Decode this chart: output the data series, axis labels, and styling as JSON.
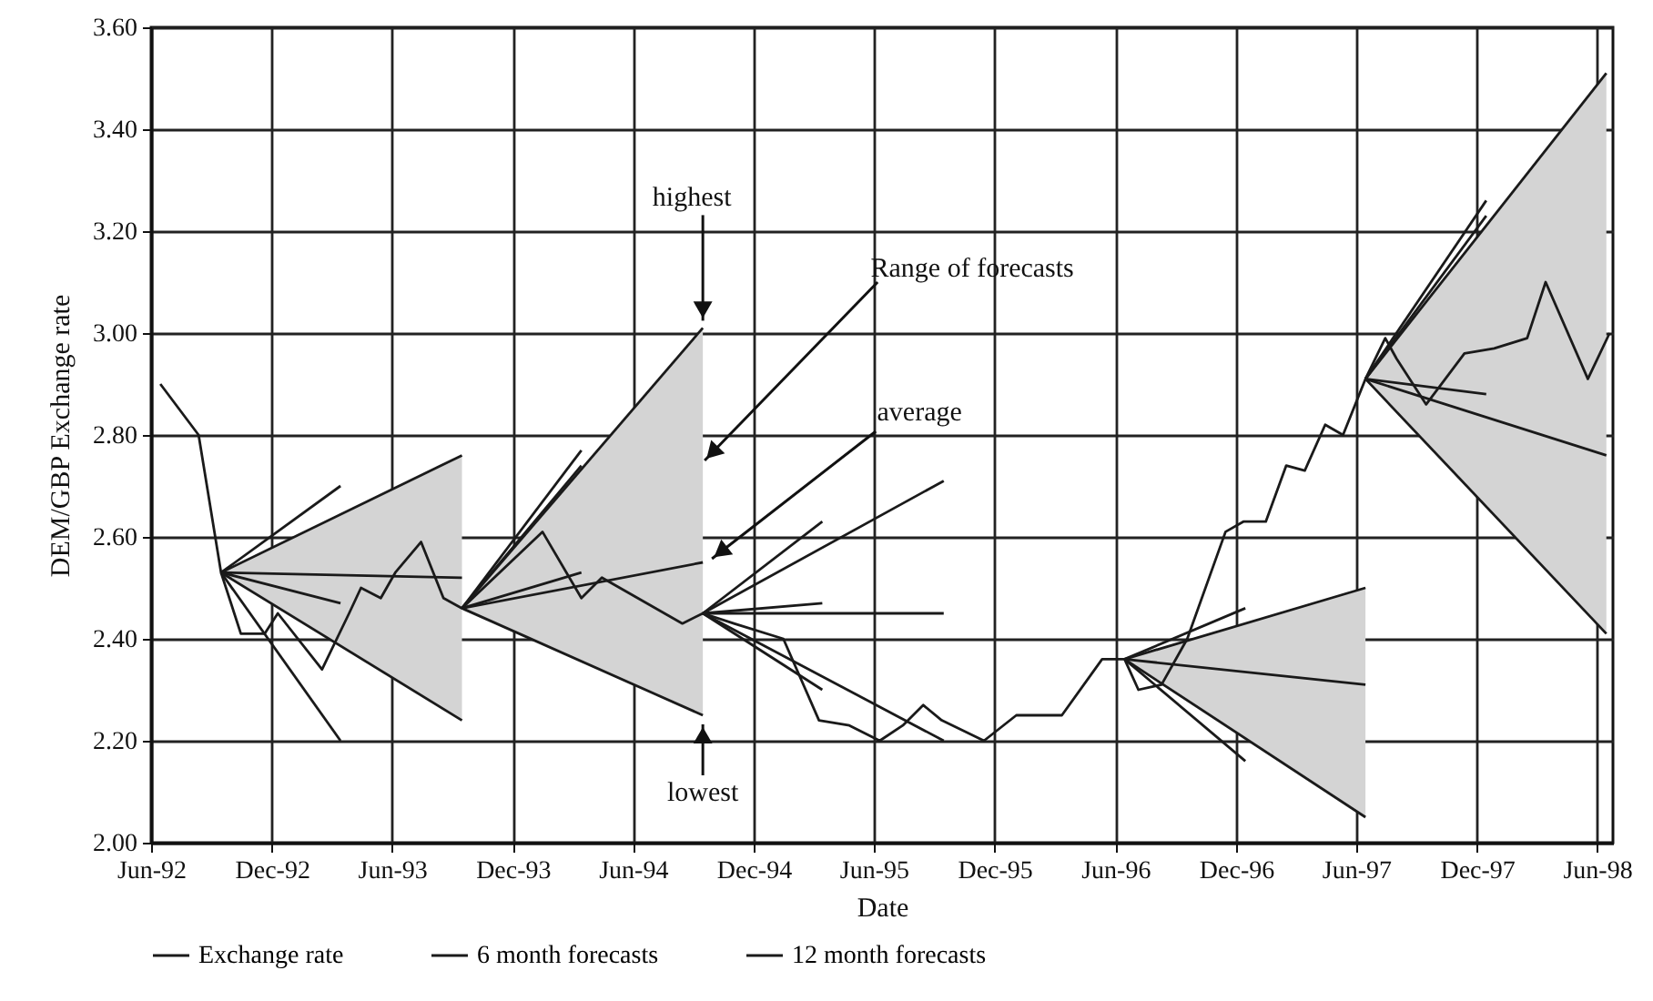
{
  "chart_data": {
    "type": "line",
    "xlabel": "Date",
    "ylabel": "DEM/GBP Exchange rate",
    "xlim": [
      "1992-06-01",
      "1998-06-25"
    ],
    "ylim": [
      2.0,
      3.6
    ],
    "xticks": [
      {
        "value": "1992-06-01",
        "label": "Jun-92"
      },
      {
        "value": "1992-12-01",
        "label": "Dec-92"
      },
      {
        "value": "1993-06-01",
        "label": "Jun-93"
      },
      {
        "value": "1993-12-01",
        "label": "Dec-93"
      },
      {
        "value": "1994-06-01",
        "label": "Jun-94"
      },
      {
        "value": "1994-12-01",
        "label": "Dec-94"
      },
      {
        "value": "1995-06-01",
        "label": "Jun-95"
      },
      {
        "value": "1995-12-01",
        "label": "Dec-95"
      },
      {
        "value": "1996-06-01",
        "label": "Jun-96"
      },
      {
        "value": "1996-12-01",
        "label": "Dec-96"
      },
      {
        "value": "1997-06-01",
        "label": "Jun-97"
      },
      {
        "value": "1997-12-01",
        "label": "Dec-97"
      },
      {
        "value": "1998-06-01",
        "label": "Jun-98"
      }
    ],
    "yticks": [
      {
        "value": 2.0,
        "label": "2.00"
      },
      {
        "value": 2.2,
        "label": "2.20"
      },
      {
        "value": 2.4,
        "label": "2.40"
      },
      {
        "value": 2.6,
        "label": "2.60"
      },
      {
        "value": 2.8,
        "label": "2.80"
      },
      {
        "value": 3.0,
        "label": "3.00"
      },
      {
        "value": 3.2,
        "label": "3.20"
      },
      {
        "value": 3.4,
        "label": "3.40"
      },
      {
        "value": 3.6,
        "label": "3.60"
      }
    ],
    "grid": true,
    "legend": "bottom",
    "marker": "none",
    "line_style": "solid",
    "series": [
      {
        "name": "Exchange rate",
        "color": "#1a1a1a",
        "x": [
          "1992-06-15",
          "1992-08-12",
          "1992-09-15",
          "1992-10-15",
          "1992-11-20",
          "1992-12-10",
          "1993-02-15",
          "1993-03-28",
          "1993-04-15",
          "1993-05-15",
          "1993-06-06",
          "1993-07-15",
          "1993-08-18",
          "1993-09-15",
          "1994-01-15",
          "1994-03-15",
          "1994-04-15",
          "1994-08-15",
          "1994-09-15",
          "1994-11-01",
          "1995-01-15",
          "1995-03-10",
          "1995-04-25",
          "1995-06-10",
          "1995-07-15",
          "1995-08-15",
          "1995-09-12",
          "1995-11-15",
          "1996-01-03",
          "1996-03-12",
          "1996-05-12",
          "1996-06-15",
          "1996-07-06",
          "1996-08-10",
          "1996-09-18",
          "1996-11-15",
          "1996-12-12",
          "1997-01-15",
          "1997-02-15",
          "1997-03-15",
          "1997-04-15",
          "1997-05-12",
          "1997-06-15",
          "1997-07-15",
          "1997-08-01",
          "1997-09-15",
          "1997-11-12",
          "1997-12-27",
          "1998-02-15",
          "1998-03-15",
          "1998-05-18",
          "1998-06-20"
        ],
        "values": [
          2.9,
          2.8,
          2.53,
          2.41,
          2.41,
          2.45,
          2.34,
          2.45,
          2.5,
          2.48,
          2.53,
          2.59,
          2.48,
          2.46,
          2.61,
          2.48,
          2.52,
          2.43,
          2.45,
          2.43,
          2.4,
          2.24,
          2.23,
          2.2,
          2.23,
          2.27,
          2.24,
          2.2,
          2.25,
          2.25,
          2.36,
          2.36,
          2.3,
          2.31,
          2.4,
          2.61,
          2.63,
          2.63,
          2.74,
          2.73,
          2.82,
          2.8,
          2.91,
          2.99,
          2.95,
          2.86,
          2.96,
          2.97,
          2.99,
          3.1,
          2.91,
          3.0
        ]
      },
      {
        "name": "6 month forecasts",
        "color": "#1a1a1a",
        "x": [
          "1992-09-15",
          "1993-03-15"
        ],
        "values": [
          2.53,
          2.7
        ]
      },
      {
        "color": "#1a1a1a",
        "x": [
          "1992-09-15",
          "1993-03-15"
        ],
        "values": [
          2.53,
          2.47
        ]
      },
      {
        "color": "#1a1a1a",
        "x": [
          "1992-09-15",
          "1993-03-15"
        ],
        "values": [
          2.53,
          2.2
        ]
      },
      {
        "name": "12 month forecasts",
        "color": "#1a1a1a",
        "x": [
          "1992-09-15",
          "1993-09-15"
        ],
        "values": [
          2.53,
          2.76
        ]
      },
      {
        "color": "#1a1a1a",
        "x": [
          "1992-09-15",
          "1993-09-15"
        ],
        "values": [
          2.53,
          2.52
        ],
        "lower": [
          2.53,
          2.24
        ],
        "upper": [
          2.53,
          2.76
        ]
      },
      {
        "color": "#1a1a1a",
        "x": [
          "1992-09-15",
          "1993-09-15"
        ],
        "values": [
          2.53,
          2.24
        ]
      },
      {
        "color": "#1a1a1a",
        "x": [
          "1993-09-15",
          "1994-03-15"
        ],
        "values": [
          2.46,
          2.77
        ]
      },
      {
        "color": "#1a1a1a",
        "x": [
          "1993-09-15",
          "1994-03-15"
        ],
        "values": [
          2.46,
          2.74
        ]
      },
      {
        "color": "#1a1a1a",
        "x": [
          "1993-09-15",
          "1994-03-15"
        ],
        "values": [
          2.46,
          2.53
        ]
      },
      {
        "color": "#1a1a1a",
        "x": [
          "1993-09-15",
          "1994-09-15"
        ],
        "values": [
          2.46,
          3.01
        ]
      },
      {
        "color": "#1a1a1a",
        "x": [
          "1993-09-15",
          "1994-09-15"
        ],
        "values": [
          2.46,
          2.55
        ],
        "lower": [
          2.46,
          2.25
        ],
        "upper": [
          2.46,
          3.01
        ]
      },
      {
        "color": "#1a1a1a",
        "x": [
          "1993-09-15",
          "1994-09-15"
        ],
        "values": [
          2.46,
          2.25
        ]
      },
      {
        "color": "#1a1a1a",
        "x": [
          "1994-09-15",
          "1995-03-15"
        ],
        "values": [
          2.45,
          2.63
        ]
      },
      {
        "color": "#1a1a1a",
        "x": [
          "1994-09-15",
          "1995-03-15"
        ],
        "values": [
          2.45,
          2.47
        ]
      },
      {
        "color": "#1a1a1a",
        "x": [
          "1994-09-15",
          "1995-03-15"
        ],
        "values": [
          2.45,
          2.3
        ]
      },
      {
        "color": "#1a1a1a",
        "x": [
          "1994-09-15",
          "1995-09-15"
        ],
        "values": [
          2.45,
          2.71
        ]
      },
      {
        "color": "#1a1a1a",
        "x": [
          "1994-09-15",
          "1995-09-15"
        ],
        "values": [
          2.45,
          2.45
        ]
      },
      {
        "color": "#1a1a1a",
        "x": [
          "1994-09-15",
          "1995-09-15"
        ],
        "values": [
          2.45,
          2.2
        ]
      },
      {
        "color": "#1a1a1a",
        "x": [
          "1996-06-15",
          "1996-12-15"
        ],
        "values": [
          2.36,
          2.46
        ]
      },
      {
        "color": "#1a1a1a",
        "x": [
          "1996-06-15",
          "1996-12-15"
        ],
        "values": [
          2.36,
          2.16
        ]
      },
      {
        "color": "#1a1a1a",
        "x": [
          "1996-06-15",
          "1997-06-15"
        ],
        "values": [
          2.36,
          2.5
        ]
      },
      {
        "color": "#1a1a1a",
        "x": [
          "1996-06-15",
          "1997-06-15"
        ],
        "values": [
          2.36,
          2.31
        ],
        "lower": [
          2.36,
          2.05
        ],
        "upper": [
          2.36,
          2.5
        ]
      },
      {
        "color": "#1a1a1a",
        "x": [
          "1996-06-15",
          "1997-06-15"
        ],
        "values": [
          2.36,
          2.05
        ]
      },
      {
        "color": "#1a1a1a",
        "x": [
          "1997-06-15",
          "1997-12-15"
        ],
        "values": [
          2.91,
          3.26
        ]
      },
      {
        "color": "#1a1a1a",
        "x": [
          "1997-06-15",
          "1997-12-15"
        ],
        "values": [
          2.91,
          3.23
        ]
      },
      {
        "color": "#1a1a1a",
        "x": [
          "1997-06-15",
          "1997-12-15"
        ],
        "values": [
          2.91,
          2.88
        ]
      },
      {
        "color": "#1a1a1a",
        "x": [
          "1997-06-15",
          "1998-06-15"
        ],
        "values": [
          2.91,
          3.51
        ]
      },
      {
        "color": "#1a1a1a",
        "x": [
          "1997-06-15",
          "1998-06-15"
        ],
        "values": [
          2.91,
          2.76
        ],
        "lower": [
          2.91,
          2.41
        ],
        "upper": [
          2.91,
          3.51
        ]
      },
      {
        "color": "#1a1a1a",
        "x": [
          "1997-06-15",
          "1998-06-15"
        ],
        "values": [
          2.91,
          2.41
        ]
      }
    ],
    "annotations": [
      {
        "text": "highest",
        "x": "1994-09-15",
        "y": 3.01
      },
      {
        "text": "Range of forecasts",
        "x": "1994-09-15",
        "y": 2.75
      },
      {
        "text": "average",
        "x": "1994-09-15",
        "y": 2.55
      },
      {
        "text": "lowest",
        "x": "1994-09-15",
        "y": 2.25
      }
    ]
  }
}
